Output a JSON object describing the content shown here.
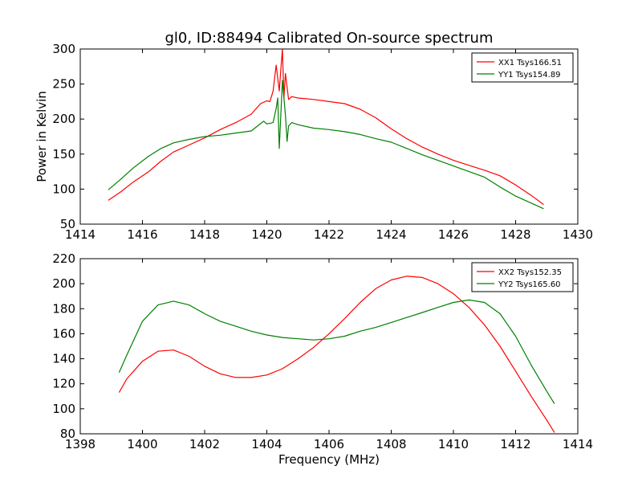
{
  "figure": {
    "title": "gl0, ID:88494 Calibrated On-source spectrum",
    "xlabel": "Frequency (MHz)",
    "ylabel": "Power in Kelvin"
  },
  "chart_data": [
    {
      "type": "line",
      "title": "gl0, ID:88494 Calibrated On-source spectrum",
      "xlabel": "",
      "ylabel": "Power in Kelvin",
      "xlim": [
        1414,
        1430
      ],
      "ylim": [
        50,
        300
      ],
      "xticks": [
        1414,
        1416,
        1418,
        1420,
        1422,
        1424,
        1426,
        1428,
        1430
      ],
      "yticks": [
        50,
        100,
        150,
        200,
        250,
        300
      ],
      "legend_position": "top-right",
      "grid": false,
      "series": [
        {
          "name": "XX1 Tsys166.51",
          "color": "#ff0000",
          "x": [
            1414.9,
            1415.3,
            1415.7,
            1416.2,
            1416.6,
            1417.0,
            1417.5,
            1418.0,
            1418.5,
            1419.0,
            1419.5,
            1419.8,
            1420.0,
            1420.1,
            1420.2,
            1420.3,
            1420.4,
            1420.45,
            1420.5,
            1420.55,
            1420.6,
            1420.7,
            1420.8,
            1421.0,
            1421.5,
            1422.0,
            1422.5,
            1423.0,
            1423.5,
            1424.0,
            1424.5,
            1425.0,
            1425.5,
            1426.0,
            1426.5,
            1427.0,
            1427.5,
            1428.0,
            1428.5,
            1428.9
          ],
          "y": [
            84,
            96,
            110,
            125,
            140,
            153,
            163,
            173,
            185,
            195,
            207,
            222,
            226,
            225,
            240,
            277,
            240,
            270,
            300,
            230,
            265,
            228,
            232,
            230,
            228,
            225,
            222,
            214,
            202,
            186,
            172,
            160,
            150,
            141,
            134,
            127,
            119,
            106,
            91,
            78
          ]
        },
        {
          "name": "YY1 Tsys154.89",
          "color": "#008000",
          "x": [
            1414.9,
            1415.3,
            1415.7,
            1416.2,
            1416.6,
            1417.0,
            1417.5,
            1418.0,
            1418.5,
            1419.0,
            1419.5,
            1419.7,
            1419.9,
            1420.0,
            1420.2,
            1420.3,
            1420.35,
            1420.4,
            1420.45,
            1420.5,
            1420.6,
            1420.65,
            1420.7,
            1420.8,
            1421.0,
            1421.5,
            1422.0,
            1422.5,
            1423.0,
            1423.5,
            1424.0,
            1424.5,
            1425.0,
            1425.5,
            1426.0,
            1426.5,
            1427.0,
            1427.5,
            1428.0,
            1428.5,
            1428.9
          ],
          "y": [
            99,
            114,
            130,
            147,
            158,
            166,
            171,
            175,
            177,
            180,
            183,
            190,
            197,
            193,
            195,
            215,
            230,
            158,
            205,
            255,
            205,
            168,
            190,
            195,
            192,
            187,
            185,
            182,
            178,
            172,
            167,
            158,
            149,
            141,
            133,
            125,
            117,
            103,
            90,
            80,
            72
          ]
        }
      ]
    },
    {
      "type": "line",
      "title": "",
      "xlabel": "Frequency (MHz)",
      "ylabel": "",
      "xlim": [
        1398,
        1414
      ],
      "ylim": [
        80,
        220
      ],
      "xticks": [
        1398,
        1400,
        1402,
        1404,
        1406,
        1408,
        1410,
        1412,
        1414
      ],
      "yticks": [
        80,
        100,
        120,
        140,
        160,
        180,
        200,
        220
      ],
      "legend_position": "top-right",
      "grid": false,
      "series": [
        {
          "name": "XX2 Tsys152.35",
          "color": "#ff0000",
          "x": [
            1399.25,
            1399.5,
            1400.0,
            1400.5,
            1401.0,
            1401.5,
            1402.0,
            1402.5,
            1403.0,
            1403.5,
            1404.0,
            1404.5,
            1405.0,
            1405.5,
            1406.0,
            1406.5,
            1407.0,
            1407.5,
            1408.0,
            1408.5,
            1409.0,
            1409.5,
            1410.0,
            1410.5,
            1411.0,
            1411.5,
            1412.0,
            1412.5,
            1413.0,
            1413.25
          ],
          "y": [
            113,
            124,
            138,
            146,
            147,
            142,
            134,
            128,
            125,
            125,
            127,
            132,
            140,
            149,
            160,
            172,
            185,
            196,
            203,
            206,
            205,
            200,
            192,
            181,
            167,
            150,
            130,
            110,
            91,
            81
          ]
        },
        {
          "name": "YY2 Tsys165.60",
          "color": "#008000",
          "x": [
            1399.25,
            1399.5,
            1400.0,
            1400.5,
            1401.0,
            1401.5,
            1402.0,
            1402.5,
            1403.0,
            1403.5,
            1404.0,
            1404.5,
            1405.0,
            1405.5,
            1406.0,
            1406.5,
            1407.0,
            1407.5,
            1408.0,
            1408.5,
            1409.0,
            1409.5,
            1410.0,
            1410.5,
            1411.0,
            1411.5,
            1412.0,
            1412.5,
            1413.0,
            1413.25
          ],
          "y": [
            129,
            143,
            170,
            183,
            186,
            183,
            176,
            170,
            166,
            162,
            159,
            157,
            156,
            155,
            156,
            158,
            162,
            165,
            169,
            173,
            177,
            181,
            185,
            187,
            185,
            176,
            158,
            135,
            114,
            104
          ]
        }
      ]
    }
  ]
}
